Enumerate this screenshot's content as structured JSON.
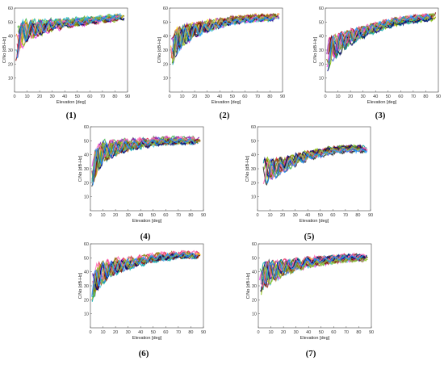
{
  "colors": {
    "series": [
      "#e6194b",
      "#3cb44b",
      "#ffd700",
      "#4363d8",
      "#f58231",
      "#911eb4",
      "#46c8e6",
      "#f032e6",
      "#7fbf00",
      "#2f2f2f",
      "#00a3a3",
      "#9a6324",
      "#800000",
      "#808000",
      "#000075",
      "#ff69b4",
      "#8bc34a",
      "#1e90ff"
    ],
    "axis": "#555555",
    "frame": "#444444"
  },
  "chart_data": [
    {
      "label": "(1)",
      "type": "scatter",
      "xlabel": "Elevation [deg]",
      "ylabel": "C/No [dB-Hz]",
      "xlim": [
        0,
        90
      ],
      "ylim": [
        0,
        60
      ],
      "xticks": [
        0,
        10,
        20,
        30,
        40,
        50,
        60,
        70,
        80,
        90
      ],
      "yticks": [
        10,
        20,
        30,
        40,
        50,
        60
      ],
      "grid": false,
      "series_count": 18,
      "trend": {
        "x": [
          2,
          5,
          10,
          20,
          30,
          40,
          50,
          60,
          70,
          80,
          88
        ],
        "y": [
          34,
          40,
          44,
          46,
          48,
          49,
          50,
          51,
          52,
          53,
          54
        ]
      },
      "x_extent": [
        1,
        88
      ]
    },
    {
      "label": "(2)",
      "type": "scatter",
      "xlabel": "Elevation [deg]",
      "ylabel": "C/No [dB-Hz]",
      "xlim": [
        0,
        90
      ],
      "ylim": [
        0,
        60
      ],
      "xticks": [
        0,
        10,
        20,
        30,
        40,
        50,
        60,
        70,
        80,
        90
      ],
      "yticks": [
        10,
        20,
        30,
        40,
        50,
        60
      ],
      "grid": false,
      "series_count": 18,
      "trend": {
        "x": [
          2,
          5,
          10,
          20,
          30,
          40,
          50,
          60,
          70,
          80,
          88
        ],
        "y": [
          28,
          35,
          40,
          44,
          47,
          49,
          51,
          52,
          53,
          53,
          54
        ]
      },
      "x_extent": [
        1,
        88
      ]
    },
    {
      "label": "(3)",
      "type": "scatter",
      "xlabel": "Elevation [deg]",
      "ylabel": "C/No [dB-Hz]",
      "xlim": [
        0,
        90
      ],
      "ylim": [
        0,
        60
      ],
      "xticks": [
        0,
        10,
        20,
        30,
        40,
        50,
        60,
        70,
        80,
        90
      ],
      "yticks": [
        10,
        20,
        30,
        40,
        50,
        60
      ],
      "grid": false,
      "series_count": 18,
      "trend": {
        "x": [
          2,
          5,
          10,
          20,
          30,
          40,
          50,
          60,
          70,
          80,
          88
        ],
        "y": [
          27,
          30,
          34,
          39,
          43,
          46,
          49,
          51,
          52,
          53,
          54
        ]
      },
      "x_extent": [
        1,
        88
      ]
    },
    {
      "label": "(4)",
      "type": "scatter",
      "xlabel": "Elevation [deg]",
      "ylabel": "C/No [dB-Hz]",
      "xlim": [
        0,
        90
      ],
      "ylim": [
        0,
        60
      ],
      "xticks": [
        0,
        10,
        20,
        30,
        40,
        50,
        60,
        70,
        80,
        90
      ],
      "yticks": [
        10,
        20,
        30,
        40,
        50,
        60
      ],
      "grid": false,
      "series_count": 18,
      "trend": {
        "x": [
          2,
          5,
          10,
          20,
          30,
          40,
          50,
          60,
          70,
          80,
          88
        ],
        "y": [
          28,
          36,
          42,
          45,
          47,
          48,
          49,
          50,
          50,
          50,
          50
        ]
      },
      "x_extent": [
        1,
        88
      ]
    },
    {
      "label": "(5)",
      "type": "scatter",
      "xlabel": "Elevation [deg]",
      "ylabel": "C/No [dB-Hz]",
      "xlim": [
        0,
        90
      ],
      "ylim": [
        0,
        60
      ],
      "xticks": [
        0,
        10,
        20,
        30,
        40,
        50,
        60,
        70,
        80,
        90
      ],
      "yticks": [
        10,
        20,
        30,
        40,
        50,
        60
      ],
      "grid": false,
      "series_count": 18,
      "trend": {
        "x": [
          5,
          10,
          20,
          30,
          40,
          50,
          60,
          70,
          80,
          88
        ],
        "y": [
          27,
          29,
          32,
          36,
          39,
          41,
          43,
          44,
          44,
          44
        ]
      },
      "x_extent": [
        4,
        88
      ]
    },
    {
      "label": "(6)",
      "type": "scatter",
      "xlabel": "Elevation [deg]",
      "ylabel": "C/No [dB-Hz]",
      "xlim": [
        0,
        90
      ],
      "ylim": [
        0,
        60
      ],
      "xticks": [
        0,
        10,
        20,
        30,
        40,
        50,
        60,
        70,
        80,
        90
      ],
      "yticks": [
        10,
        20,
        30,
        40,
        50,
        60
      ],
      "grid": false,
      "series_count": 18,
      "trend": {
        "x": [
          2,
          5,
          10,
          20,
          30,
          40,
          50,
          60,
          70,
          80,
          88
        ],
        "y": [
          30,
          35,
          40,
          44,
          46,
          48,
          50,
          51,
          52,
          52,
          52
        ]
      },
      "x_extent": [
        1,
        88
      ]
    },
    {
      "label": "(7)",
      "type": "scatter",
      "xlabel": "Elevation [deg]",
      "ylabel": "C/No [dB-Hz]",
      "xlim": [
        0,
        90
      ],
      "ylim": [
        0,
        60
      ],
      "xticks": [
        0,
        10,
        20,
        30,
        40,
        50,
        60,
        70,
        80,
        90
      ],
      "yticks": [
        10,
        20,
        30,
        40,
        50,
        60
      ],
      "grid": false,
      "series_count": 18,
      "trend": {
        "x": [
          2,
          5,
          10,
          20,
          30,
          40,
          50,
          60,
          70,
          80,
          88
        ],
        "y": [
          33,
          38,
          40,
          43,
          45,
          47,
          48,
          49,
          50,
          50,
          51
        ]
      },
      "x_extent": [
        1,
        88
      ]
    }
  ]
}
